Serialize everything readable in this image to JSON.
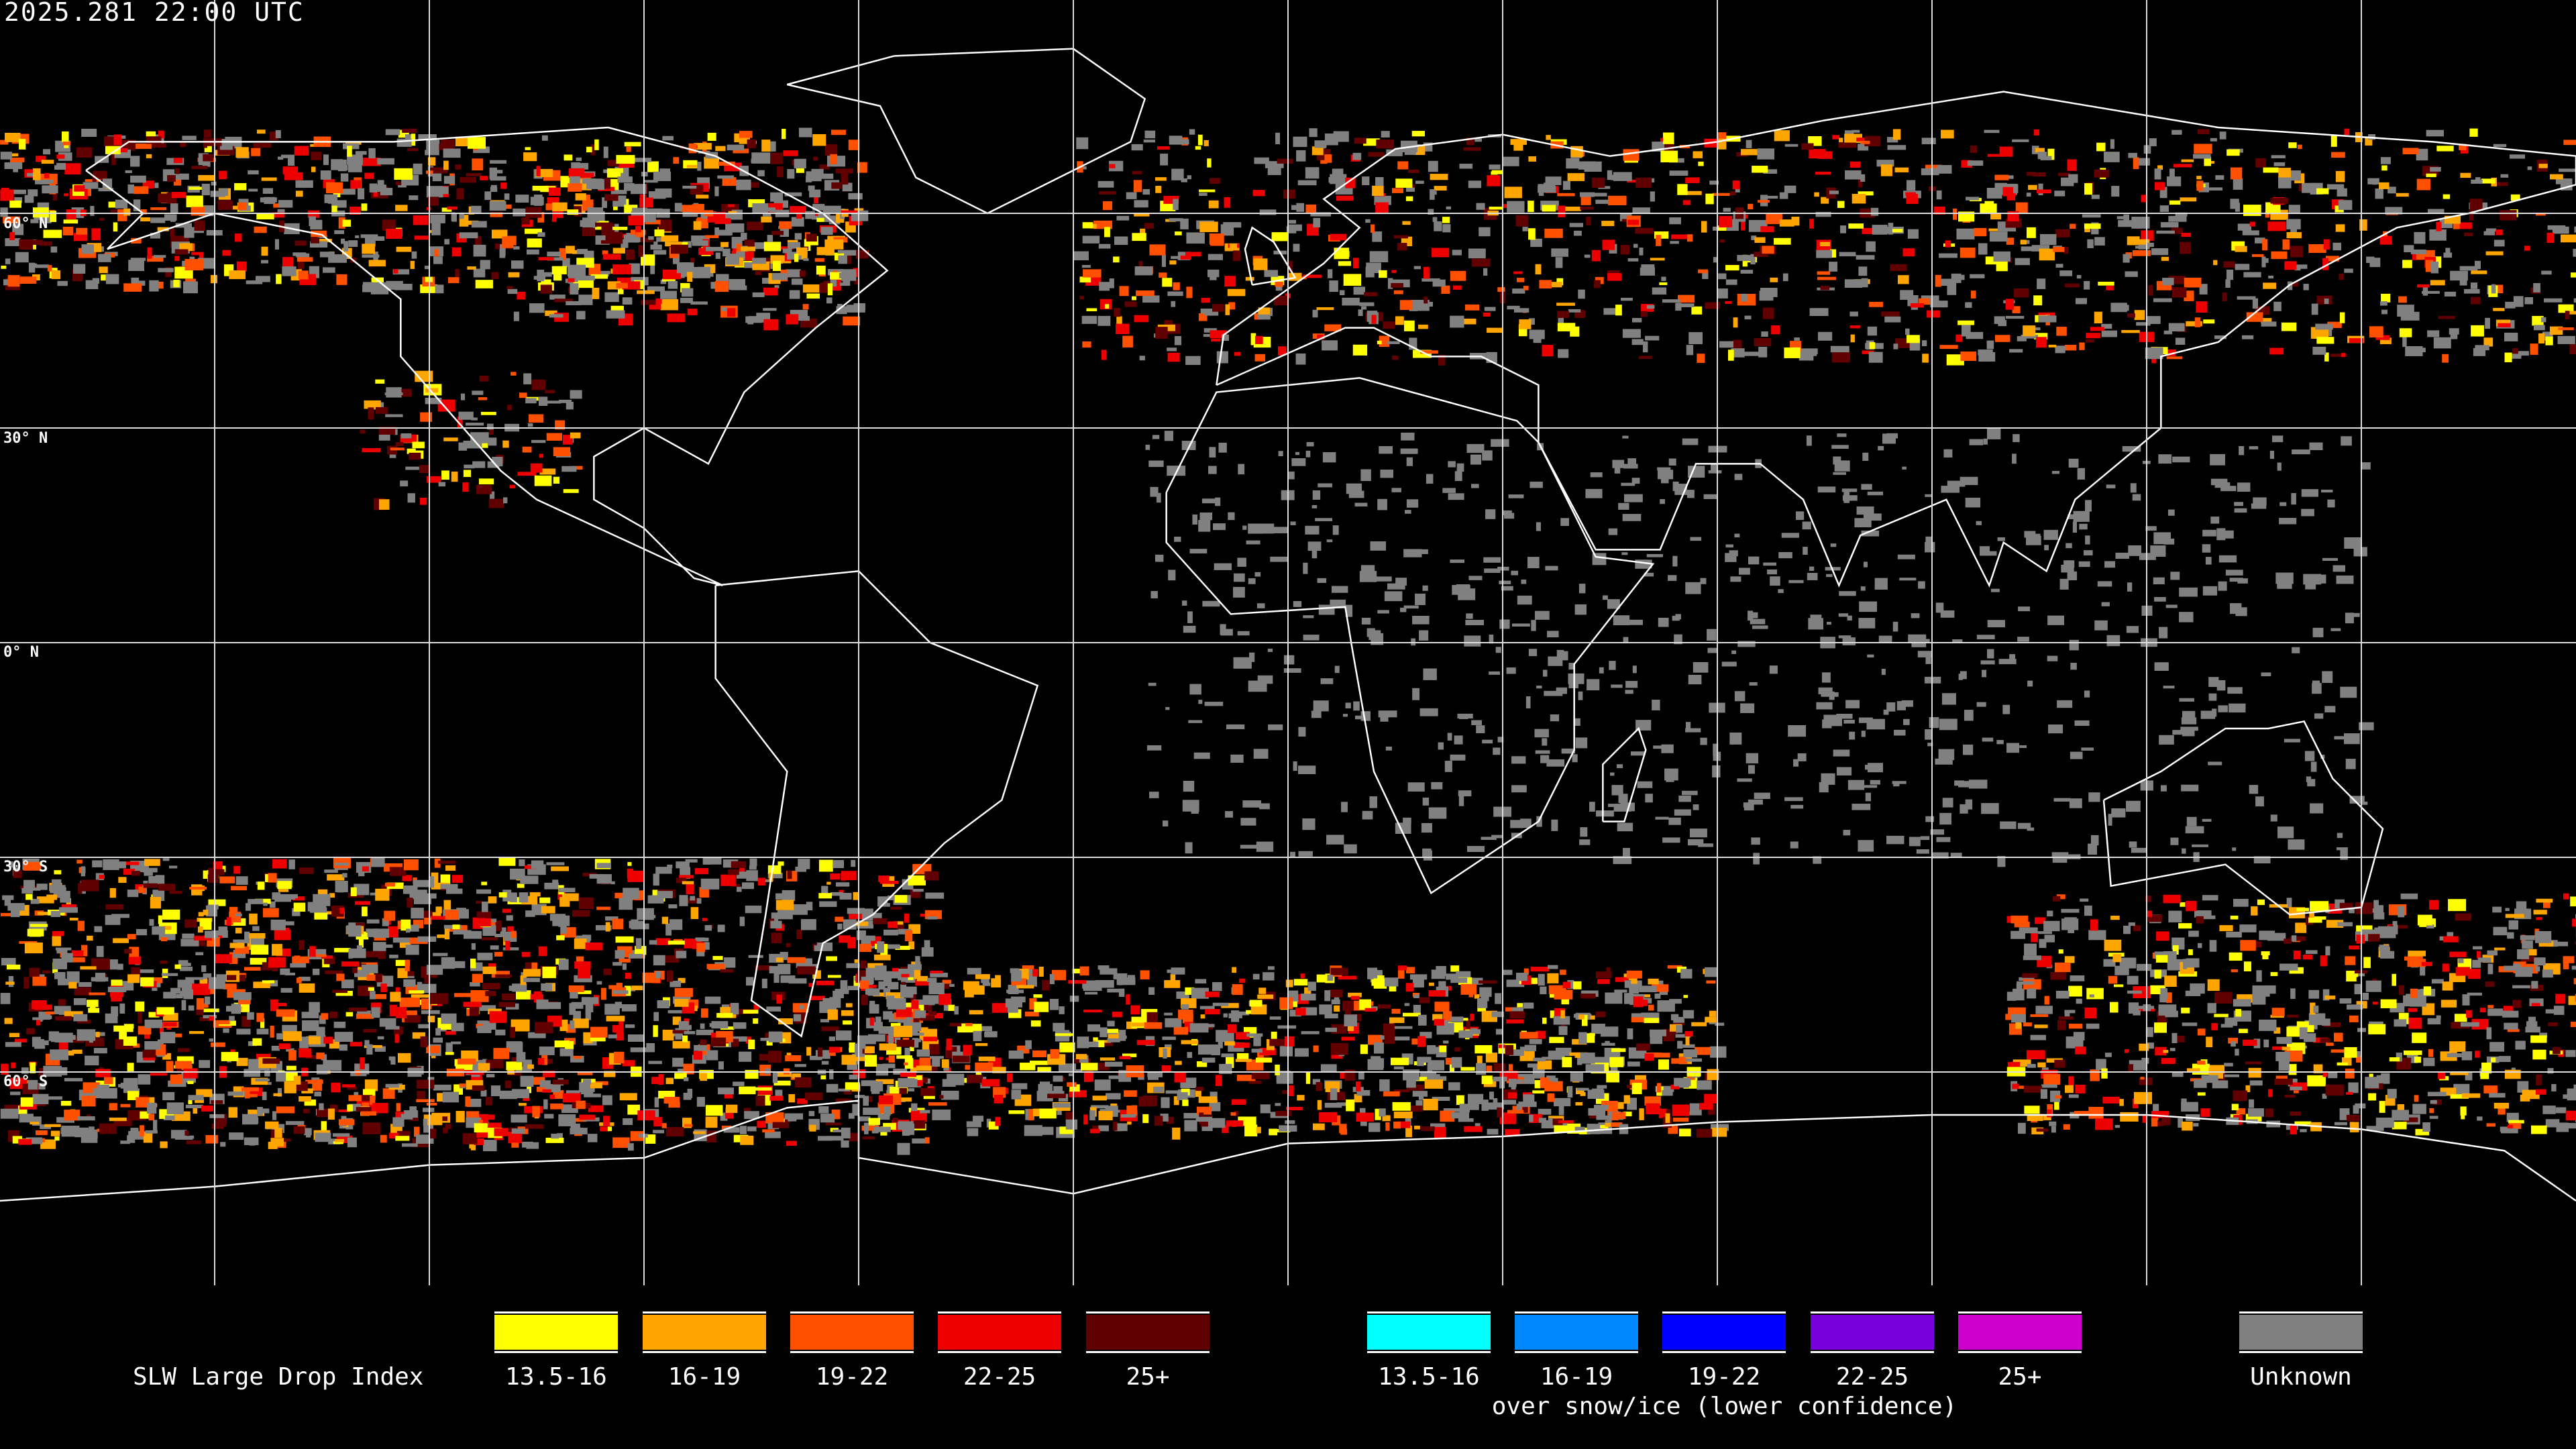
{
  "timestamp": "2025.281 22:00 UTC",
  "map": {
    "projection": "equirectangular",
    "center_longitude": 0,
    "graticule_step_degrees": 30,
    "latitude_labels": [
      "60° N",
      "30° N",
      "0° N",
      "30° S",
      "60° S"
    ],
    "background_color": "#000000",
    "coastline_color": "#ffffff"
  },
  "legend": {
    "title": "SLW Large Drop Index",
    "over_water": [
      {
        "label": "13.5-16",
        "color": "#ffff00"
      },
      {
        "label": "16-19",
        "color": "#ffa500"
      },
      {
        "label": "19-22",
        "color": "#ff5000"
      },
      {
        "label": "22-25",
        "color": "#ee0000"
      },
      {
        "label": "25+",
        "color": "#600000"
      }
    ],
    "over_snow_ice": [
      {
        "label": "13.5-16",
        "color": "#00ffff"
      },
      {
        "label": "16-19",
        "color": "#0088ff"
      },
      {
        "label": "19-22",
        "color": "#0000ff"
      },
      {
        "label": "22-25",
        "color": "#7700dd"
      },
      {
        "label": "25+",
        "color": "#cc00cc"
      }
    ],
    "over_snow_ice_caption": "over snow/ice (lower confidence)",
    "unknown": {
      "label": "Unknown",
      "color": "#808080"
    }
  }
}
